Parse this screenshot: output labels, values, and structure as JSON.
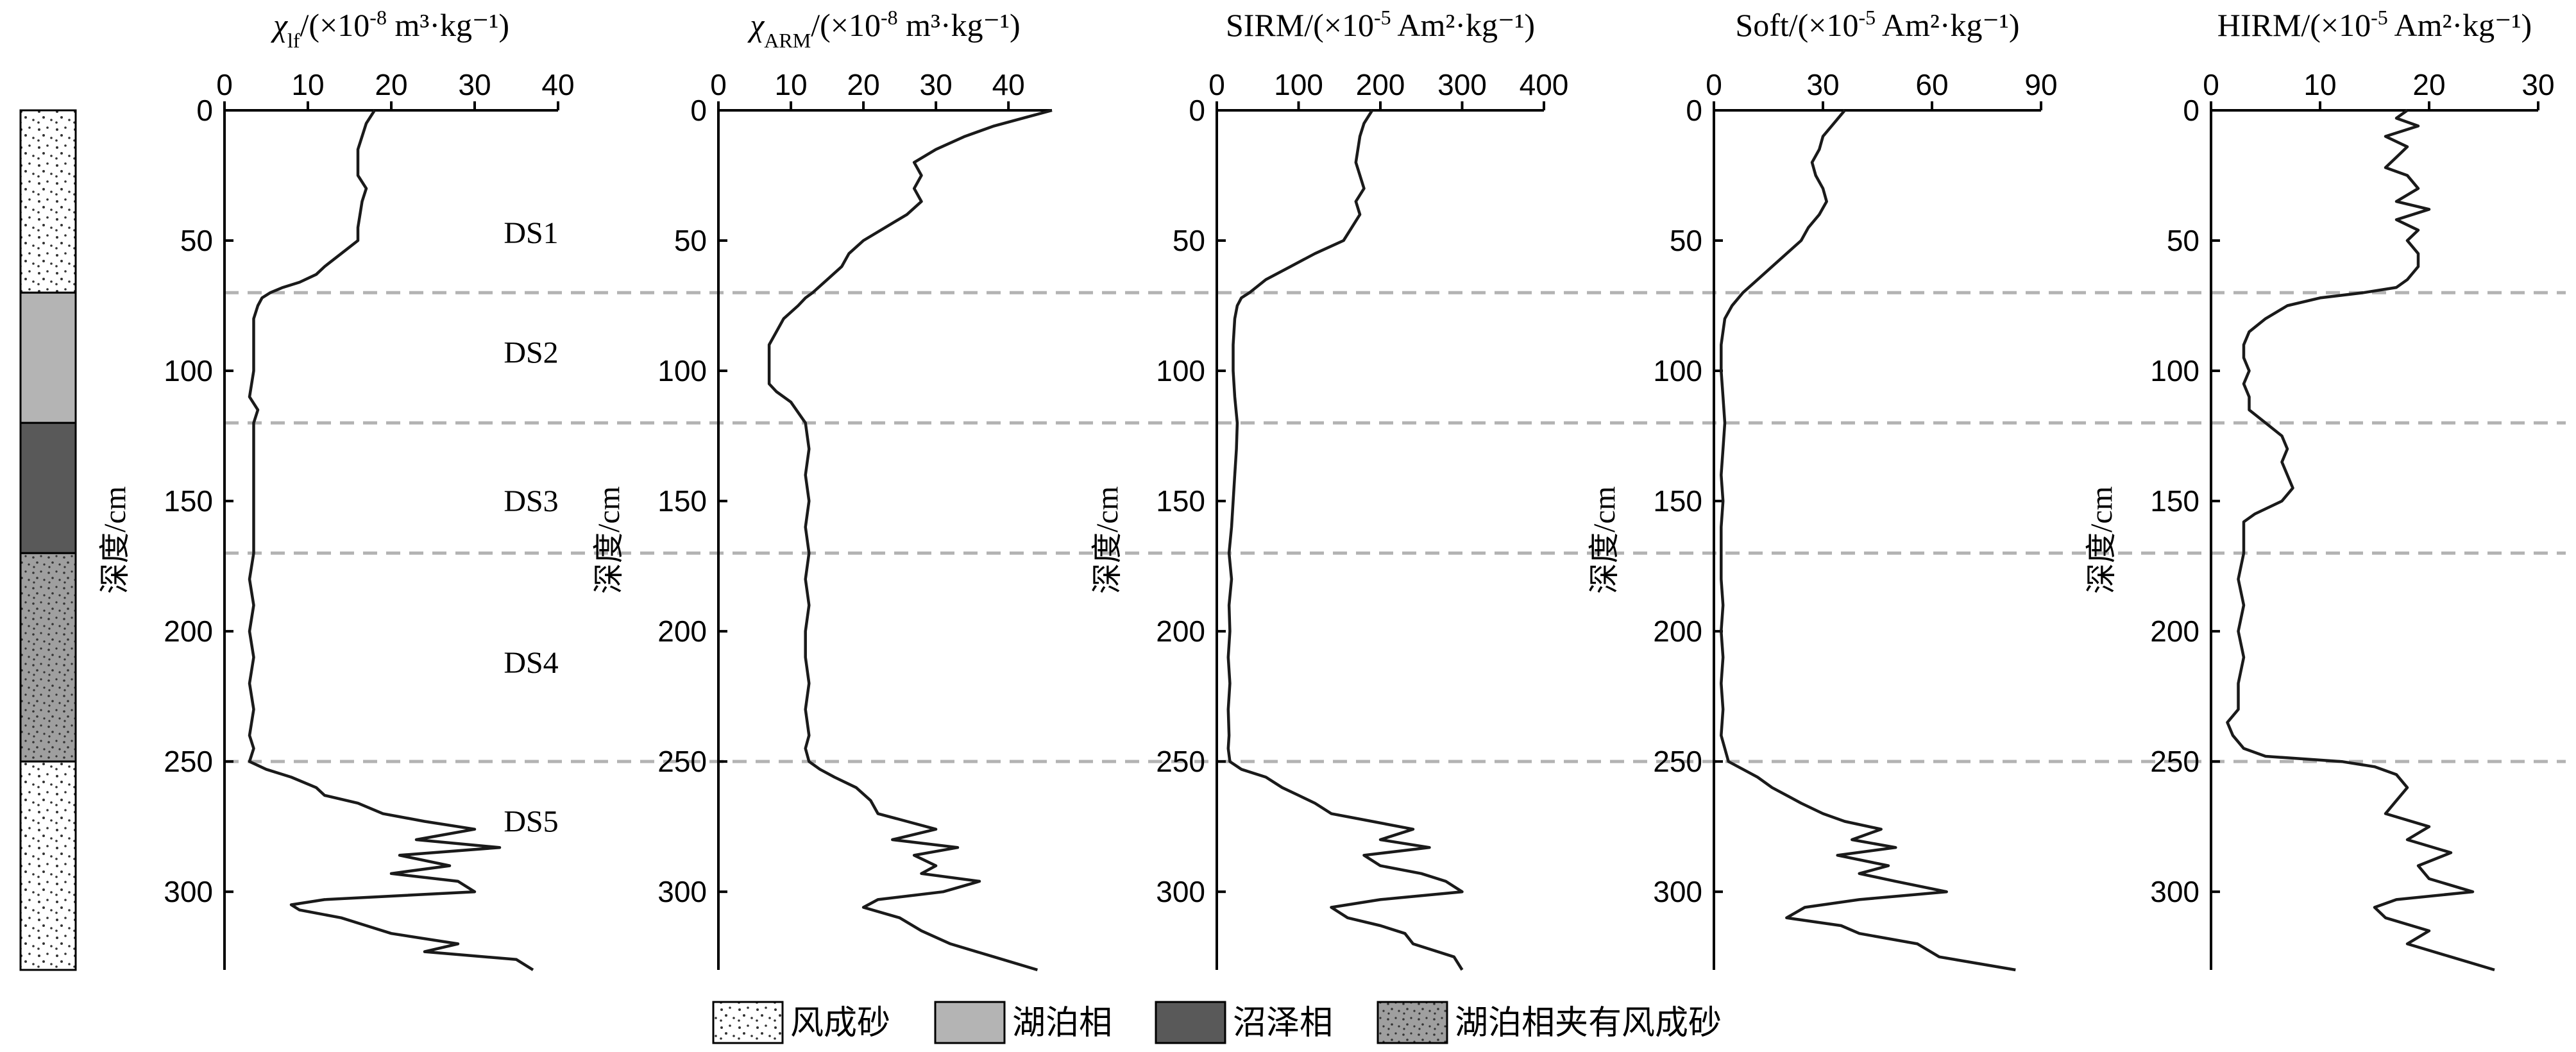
{
  "legend": {
    "items": [
      {
        "label": "风成砂",
        "pattern": "sand"
      },
      {
        "label": "湖泊相",
        "pattern": "lake"
      },
      {
        "label": "沼泽相",
        "pattern": "swamp"
      },
      {
        "label": "湖泊相夹有风成砂",
        "pattern": "lake-sand"
      }
    ]
  },
  "lithology_column": [
    {
      "from": 0,
      "to": 70,
      "pattern": "sand"
    },
    {
      "from": 70,
      "to": 120,
      "pattern": "lake"
    },
    {
      "from": 120,
      "to": 170,
      "pattern": "swamp"
    },
    {
      "from": 170,
      "to": 250,
      "pattern": "lake-sand"
    },
    {
      "from": 250,
      "to": 330,
      "pattern": "sand"
    }
  ],
  "colors": {
    "line": "#1a1a1a",
    "boundary": "#b3b3b3",
    "sand_bg": "#ffffff",
    "lake": "#b4b4b4",
    "swamp": "#595959",
    "lake_sand_bg": "#9f9f9f"
  },
  "zones": {
    "boundaries": [
      70,
      120,
      170,
      250
    ],
    "labels": [
      {
        "text": "DS1",
        "depth": 47
      },
      {
        "text": "DS2",
        "depth": 93
      },
      {
        "text": "DS3",
        "depth": 150
      },
      {
        "text": "DS4",
        "depth": 212
      },
      {
        "text": "DS5",
        "depth": 273
      }
    ]
  },
  "chart_data": [
    {
      "type": "line",
      "title_main": "χ",
      "title_sub": "lf",
      "title_rest": "/(×10",
      "title_sup": "-8",
      "title_end": " m³·kg⁻¹)",
      "xlim": [
        0,
        40
      ],
      "xticks": [
        "0",
        "10",
        "20",
        "30",
        "40"
      ],
      "ylabel": "深度/cm",
      "ylim": [
        0,
        330
      ],
      "yticks": [
        "0",
        "50",
        "100",
        "150",
        "200",
        "250",
        "300"
      ],
      "series": [
        {
          "depth": [
            0,
            5,
            15,
            25,
            30,
            35,
            45,
            50,
            55,
            60,
            63,
            66,
            68,
            70,
            72,
            75,
            80,
            90,
            100,
            110,
            115,
            120,
            130,
            140,
            150,
            160,
            170,
            180,
            190,
            200,
            210,
            220,
            230,
            240,
            245,
            250,
            253,
            256,
            260,
            263,
            266,
            270,
            273,
            276,
            280,
            283,
            286,
            290,
            293,
            296,
            300,
            303,
            305,
            307,
            310,
            313,
            316,
            320,
            323,
            326,
            330
          ],
          "value": [
            18,
            17,
            16,
            16,
            17,
            16.5,
            16,
            16,
            14,
            12,
            11,
            9,
            7,
            5.5,
            4.5,
            4,
            3.5,
            3.5,
            3.5,
            3,
            4,
            3.5,
            3.5,
            3.5,
            3.5,
            3.5,
            3.5,
            3,
            3.5,
            3,
            3.5,
            3,
            3.5,
            3,
            3.5,
            3,
            5,
            8,
            11,
            12,
            16,
            19,
            24,
            30,
            23,
            33,
            21,
            27,
            20,
            28,
            30,
            12,
            8,
            9,
            14,
            17,
            20,
            28,
            24,
            35,
            37
          ]
        }
      ]
    },
    {
      "type": "line",
      "title_main": "χ",
      "title_sub": "ARM",
      "title_rest": "/(×10",
      "title_sup": "-8",
      "title_end": " m³·kg⁻¹)",
      "xlim": [
        0,
        46
      ],
      "xticks": [
        "0",
        "10",
        "20",
        "30",
        "40"
      ],
      "ylabel": "深度/cm",
      "ylim": [
        0,
        330
      ],
      "yticks": [
        "0",
        "50",
        "100",
        "150",
        "200",
        "250",
        "300"
      ],
      "series": [
        {
          "depth": [
            0,
            3,
            6,
            10,
            15,
            20,
            25,
            30,
            35,
            40,
            45,
            50,
            55,
            60,
            65,
            70,
            72,
            75,
            80,
            85,
            90,
            95,
            100,
            105,
            108,
            112,
            118,
            120,
            130,
            140,
            150,
            160,
            170,
            180,
            190,
            200,
            210,
            220,
            230,
            240,
            245,
            250,
            253,
            256,
            260,
            265,
            270,
            273,
            276,
            280,
            283,
            286,
            290,
            293,
            296,
            300,
            303,
            306,
            310,
            315,
            320,
            325,
            330
          ],
          "value": [
            46,
            42,
            38,
            34,
            30,
            27,
            28,
            27,
            28,
            26,
            23,
            20,
            18,
            17,
            15,
            13,
            12,
            11,
            9,
            8,
            7,
            7,
            7,
            7,
            8,
            10,
            11.5,
            12,
            12.5,
            12,
            12.5,
            12,
            12.5,
            12,
            12.5,
            12,
            12,
            12.5,
            12,
            12.5,
            12,
            12.5,
            14,
            16,
            19,
            21,
            22,
            26,
            30,
            24,
            33,
            27,
            30,
            28,
            36,
            31,
            22,
            20,
            25,
            28,
            32,
            38,
            44
          ]
        }
      ]
    },
    {
      "type": "line",
      "title_main": "SIRM/(×10",
      "title_sup": "-5",
      "title_end": " Am²·kg⁻¹)",
      "xlim": [
        0,
        400
      ],
      "xticks": [
        "0",
        "100",
        "200",
        "300",
        "400"
      ],
      "ylabel": "深度/cm",
      "ylim": [
        0,
        330
      ],
      "yticks": [
        "0",
        "50",
        "100",
        "150",
        "200",
        "250",
        "300"
      ],
      "series": [
        {
          "depth": [
            0,
            5,
            10,
            20,
            30,
            35,
            40,
            45,
            50,
            55,
            60,
            65,
            70,
            72,
            75,
            80,
            90,
            100,
            110,
            120,
            130,
            140,
            150,
            160,
            170,
            180,
            190,
            200,
            210,
            220,
            230,
            240,
            245,
            250,
            253,
            256,
            260,
            263,
            266,
            270,
            273,
            276,
            280,
            283,
            286,
            290,
            293,
            296,
            300,
            303,
            306,
            310,
            313,
            316,
            320,
            325,
            330
          ],
          "value": [
            190,
            180,
            175,
            170,
            180,
            170,
            175,
            165,
            155,
            120,
            90,
            60,
            40,
            30,
            25,
            22,
            20,
            20,
            22,
            25,
            24,
            22,
            20,
            18,
            15,
            18,
            15,
            16,
            14,
            16,
            14,
            15,
            14,
            16,
            30,
            60,
            80,
            100,
            120,
            140,
            190,
            240,
            200,
            260,
            180,
            200,
            250,
            280,
            300,
            200,
            140,
            160,
            200,
            230,
            240,
            290,
            300
          ]
        }
      ]
    },
    {
      "type": "line",
      "title_main": "Soft/(×10",
      "title_sup": "-5",
      "title_end": " Am²·kg⁻¹)",
      "xlim": [
        0,
        90
      ],
      "xticks": [
        "0",
        "30",
        "60",
        "90"
      ],
      "ylabel": "深度/cm",
      "ylim": [
        0,
        330
      ],
      "yticks": [
        "0",
        "50",
        "100",
        "150",
        "200",
        "250",
        "300"
      ],
      "series": [
        {
          "depth": [
            0,
            5,
            10,
            15,
            20,
            25,
            30,
            35,
            40,
            45,
            50,
            55,
            60,
            65,
            70,
            75,
            80,
            90,
            100,
            110,
            120,
            130,
            140,
            150,
            160,
            170,
            180,
            190,
            200,
            210,
            220,
            230,
            240,
            245,
            250,
            253,
            256,
            260,
            263,
            266,
            270,
            273,
            276,
            280,
            283,
            286,
            290,
            293,
            296,
            300,
            303,
            306,
            310,
            313,
            316,
            320,
            325,
            330
          ],
          "value": [
            36,
            33,
            30,
            29,
            27,
            28,
            30,
            31,
            29,
            26,
            24,
            20,
            16,
            12,
            8,
            5,
            3,
            2,
            2,
            2.5,
            3,
            2.5,
            2,
            2.5,
            2,
            2,
            2,
            2.5,
            2,
            2.5,
            2,
            2.5,
            2,
            3,
            4,
            8,
            12,
            16,
            20,
            24,
            30,
            36,
            46,
            38,
            50,
            34,
            48,
            40,
            50,
            64,
            40,
            25,
            20,
            35,
            40,
            56,
            62,
            83
          ]
        }
      ]
    },
    {
      "type": "line",
      "title_main": "HIRM/(×10",
      "title_sup": "-5",
      "title_end": " Am²·kg⁻¹)",
      "xlim": [
        0,
        30
      ],
      "xticks": [
        "0",
        "10",
        "20",
        "30"
      ],
      "ylabel": "深度/cm",
      "ylim": [
        0,
        330
      ],
      "yticks": [
        "0",
        "50",
        "100",
        "150",
        "200",
        "250",
        "300"
      ],
      "series": [
        {
          "depth": [
            0,
            3,
            6,
            10,
            14,
            18,
            22,
            25,
            30,
            35,
            38,
            42,
            46,
            50,
            55,
            60,
            65,
            68,
            70,
            72,
            75,
            80,
            85,
            90,
            95,
            100,
            105,
            110,
            115,
            120,
            125,
            130,
            135,
            140,
            145,
            150,
            155,
            158,
            160,
            170,
            180,
            190,
            200,
            210,
            220,
            230,
            235,
            240,
            245,
            248,
            250,
            252,
            255,
            260,
            265,
            270,
            275,
            280,
            285,
            290,
            295,
            300,
            303,
            306,
            310,
            315,
            320,
            325,
            330
          ],
          "value": [
            18,
            17,
            19,
            16,
            18,
            17,
            16,
            18,
            19,
            17,
            20,
            17,
            19,
            18,
            19,
            19,
            18,
            17,
            14,
            10,
            7,
            5,
            3.5,
            3,
            3,
            3.5,
            3,
            3.5,
            3.5,
            5,
            6.5,
            7,
            6.5,
            7,
            7.5,
            6.5,
            4,
            3,
            3,
            3,
            2.5,
            3,
            2.5,
            3,
            2.5,
            2.5,
            1.5,
            2,
            3,
            5,
            12,
            15,
            17,
            18,
            17,
            16,
            20,
            18,
            22,
            19,
            20,
            24,
            17,
            15,
            16,
            20,
            18,
            22,
            26
          ]
        }
      ]
    }
  ]
}
